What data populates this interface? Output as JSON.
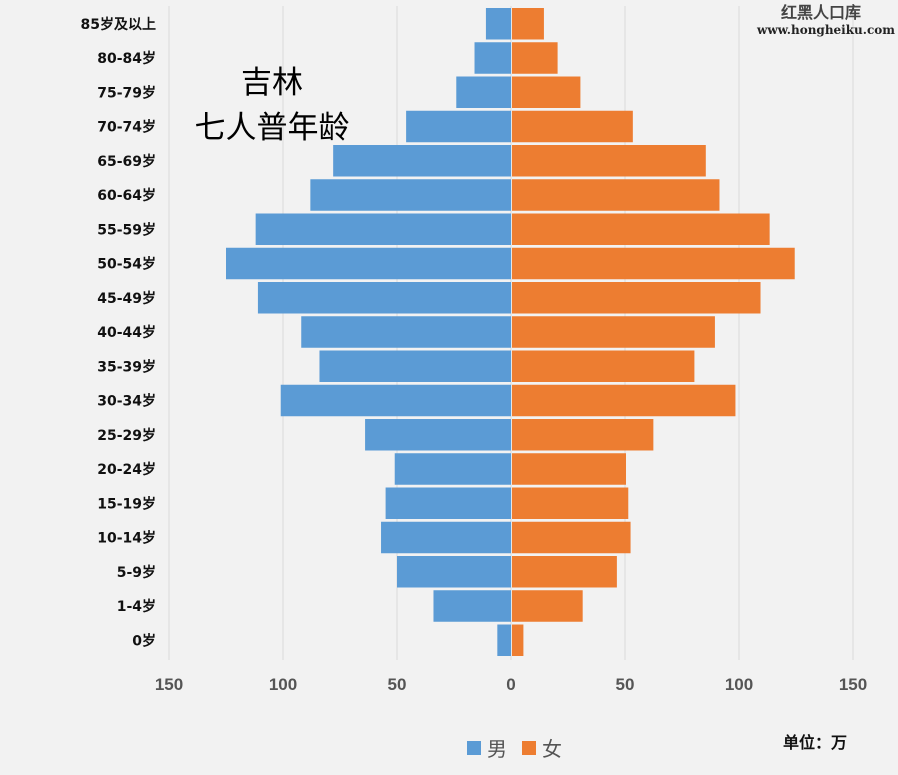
{
  "chart_data": {
    "type": "bar",
    "orientation": "horizontal",
    "layout": "population-pyramid",
    "title": [
      "吉林",
      "七人普年龄"
    ],
    "categories": [
      "0岁",
      "1-4岁",
      "5-9岁",
      "10-14岁",
      "15-19岁",
      "20-24岁",
      "25-29岁",
      "30-34岁",
      "35-39岁",
      "40-44岁",
      "45-49岁",
      "50-54岁",
      "55-59岁",
      "60-64岁",
      "65-69岁",
      "70-74岁",
      "75-79岁",
      "80-84岁",
      "85岁及以上"
    ],
    "series": [
      {
        "name": "男",
        "color": "#5b9bd5",
        "values": [
          6,
          34,
          50,
          57,
          55,
          51,
          64,
          101,
          84,
          92,
          111,
          125,
          112,
          88,
          78,
          46,
          24,
          16,
          11
        ]
      },
      {
        "name": "女",
        "color": "#ed7d31",
        "values": [
          5,
          31,
          46,
          52,
          51,
          50,
          62,
          98,
          80,
          89,
          109,
          124,
          113,
          91,
          85,
          53,
          30,
          20,
          14
        ]
      }
    ],
    "xlim": [
      -150,
      150
    ],
    "xticks": [
      -150,
      -100,
      -50,
      0,
      50,
      100,
      150
    ],
    "xtick_labels": [
      "150",
      "100",
      "50",
      "0",
      "50",
      "100",
      "150"
    ],
    "grid": true,
    "legend_position": "bottom",
    "unit_label": "单位：万"
  },
  "watermark": {
    "name": "红黑人口库",
    "url": "www.hongheiku.com"
  }
}
